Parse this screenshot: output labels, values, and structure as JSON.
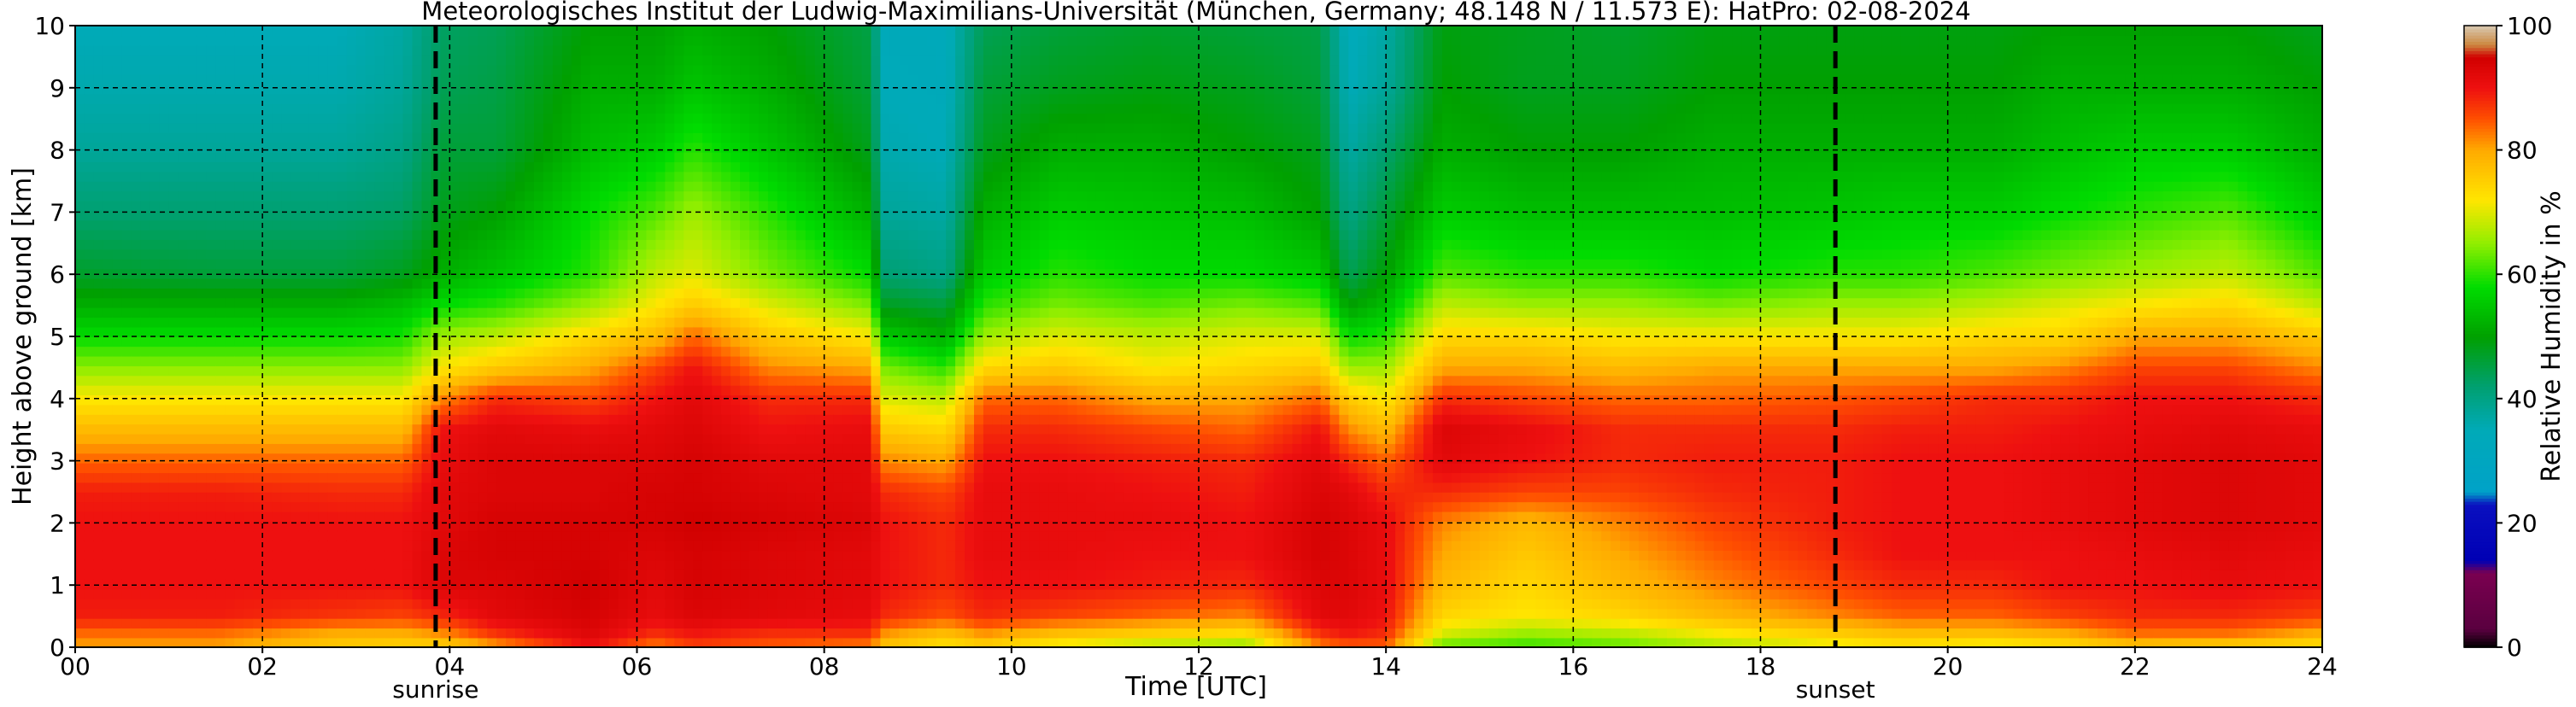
{
  "chart_data": {
    "type": "heatmap",
    "title": "Meteorologisches Institut der Ludwig-Maximilians-Universität (München, Germany; 48.148 N / 11.573 E):    HatPro: 02-08-2024",
    "xlabel": "Time [UTC]",
    "ylabel": "Height above ground [km]",
    "colorbar_label": "Relative Humidity in %",
    "xlim": [
      0,
      24
    ],
    "ylim": [
      0,
      10
    ],
    "clim": [
      0,
      100
    ],
    "x_ticks": [
      0,
      2,
      4,
      6,
      8,
      10,
      12,
      14,
      16,
      18,
      20,
      22,
      24
    ],
    "x_tick_labels": [
      "00",
      "02",
      "04",
      "06",
      "08",
      "10",
      "12",
      "14",
      "16",
      "18",
      "20",
      "22",
      "24"
    ],
    "y_ticks": [
      0,
      1,
      2,
      3,
      4,
      5,
      6,
      7,
      8,
      9,
      10
    ],
    "y_tick_labels": [
      "0",
      "1",
      "2",
      "3",
      "4",
      "5",
      "6",
      "7",
      "8",
      "9",
      "10"
    ],
    "colorbar_ticks": [
      0,
      20,
      40,
      60,
      80,
      100
    ],
    "colorbar_tick_labels": [
      "0",
      "20",
      "40",
      "60",
      "80",
      "100"
    ],
    "grid": true,
    "markers": [
      {
        "label": "sunrise",
        "x": 3.85
      },
      {
        "label": "sunset",
        "x": 18.8
      }
    ],
    "colorscale": [
      {
        "v": 0,
        "color": "#000000"
      },
      {
        "v": 3,
        "color": "#5a0040"
      },
      {
        "v": 12,
        "color": "#7a0050"
      },
      {
        "v": 14,
        "color": "#0000b4"
      },
      {
        "v": 23,
        "color": "#0a10c0"
      },
      {
        "v": 25,
        "color": "#00a2c8"
      },
      {
        "v": 35,
        "color": "#00aab8"
      },
      {
        "v": 42,
        "color": "#00a070"
      },
      {
        "v": 50,
        "color": "#00a000"
      },
      {
        "v": 58,
        "color": "#00dc00"
      },
      {
        "v": 65,
        "color": "#90ee00"
      },
      {
        "v": 72,
        "color": "#ffe600"
      },
      {
        "v": 80,
        "color": "#ffaa00"
      },
      {
        "v": 85,
        "color": "#ff5000"
      },
      {
        "v": 90,
        "color": "#ee1010"
      },
      {
        "v": 95,
        "color": "#d00000"
      },
      {
        "v": 97,
        "color": "#cc8840"
      },
      {
        "v": 100,
        "color": "#d8c8b0"
      }
    ],
    "heights_km": [
      0,
      0.25,
      0.5,
      1,
      1.5,
      2,
      2.5,
      3,
      3.5,
      4,
      4.5,
      5,
      5.5,
      6,
      7,
      8,
      9,
      10
    ],
    "humidity_profiles": [
      {
        "t": 0.0,
        "rh": [
          80,
          84,
          89,
          90,
          90,
          90,
          89,
          84,
          78,
          72,
          65,
          58,
          52,
          47,
          42,
          38,
          36,
          35
        ]
      },
      {
        "t": 1.5,
        "rh": [
          80,
          84,
          89,
          90,
          90,
          90,
          89,
          84,
          78,
          72,
          65,
          58,
          52,
          46,
          42,
          38,
          36,
          35
        ]
      },
      {
        "t": 2.8,
        "rh": [
          75,
          80,
          87,
          90,
          90,
          90,
          88,
          84,
          78,
          72,
          65,
          58,
          52,
          46,
          42,
          38,
          36,
          35
        ]
      },
      {
        "t": 3.5,
        "rh": [
          74,
          80,
          86,
          90,
          90,
          90,
          88,
          84,
          78,
          72,
          65,
          59,
          54,
          48,
          43,
          40,
          38,
          37
        ]
      },
      {
        "t": 3.9,
        "rh": [
          74,
          82,
          88,
          93,
          93,
          92,
          92,
          91,
          90,
          82,
          72,
          66,
          58,
          52,
          48,
          46,
          44,
          43
        ]
      },
      {
        "t": 4.5,
        "rh": [
          80,
          88,
          92,
          93,
          94,
          94,
          93,
          93,
          92,
          88,
          76,
          68,
          60,
          55,
          50,
          46,
          45,
          44
        ]
      },
      {
        "t": 5.5,
        "rh": [
          90,
          93,
          94,
          95,
          94,
          94,
          93,
          93,
          91,
          86,
          80,
          74,
          66,
          60,
          58,
          54,
          52,
          50
        ]
      },
      {
        "t": 6.2,
        "rh": [
          82,
          88,
          91,
          92,
          93,
          94,
          94,
          93,
          92,
          90,
          86,
          78,
          72,
          68,
          62,
          56,
          52,
          50
        ]
      },
      {
        "t": 6.6,
        "rh": [
          86,
          90,
          93,
          94,
          94,
          95,
          94,
          94,
          93,
          92,
          90,
          84,
          76,
          70,
          66,
          60,
          55,
          52
        ]
      },
      {
        "t": 7.4,
        "rh": [
          84,
          88,
          92,
          93,
          93,
          94,
          93,
          92,
          90,
          88,
          82,
          76,
          70,
          64,
          60,
          55,
          52,
          50
        ]
      },
      {
        "t": 8.5,
        "rh": [
          82,
          88,
          91,
          92,
          92,
          93,
          92,
          92,
          91,
          88,
          80,
          72,
          64,
          58,
          52,
          48,
          46,
          45
        ]
      },
      {
        "t": 8.62,
        "rh": [
          76,
          82,
          88,
          90,
          90,
          90,
          88,
          82,
          76,
          70,
          64,
          56,
          48,
          42,
          38,
          36,
          35,
          34
        ]
      },
      {
        "t": 9.3,
        "rh": [
          72,
          78,
          85,
          88,
          88,
          88,
          86,
          80,
          74,
          68,
          60,
          52,
          46,
          40,
          37,
          35,
          34,
          34
        ]
      },
      {
        "t": 9.7,
        "rh": [
          74,
          82,
          88,
          90,
          91,
          91,
          91,
          90,
          88,
          84,
          74,
          66,
          60,
          56,
          52,
          48,
          46,
          44
        ]
      },
      {
        "t": 10.5,
        "rh": [
          70,
          78,
          86,
          90,
          91,
          91,
          91,
          90,
          88,
          84,
          76,
          70,
          64,
          60,
          56,
          52,
          48,
          46
        ]
      },
      {
        "t": 11.5,
        "rh": [
          66,
          76,
          84,
          89,
          90,
          91,
          90,
          89,
          86,
          80,
          72,
          68,
          62,
          58,
          55,
          52,
          49,
          47
        ]
      },
      {
        "t": 12.5,
        "rh": [
          64,
          74,
          82,
          88,
          90,
          90,
          89,
          88,
          84,
          80,
          74,
          70,
          64,
          58,
          54,
          50,
          48,
          46
        ]
      },
      {
        "t": 13.3,
        "rh": [
          82,
          88,
          92,
          93,
          94,
          94,
          93,
          92,
          90,
          84,
          76,
          70,
          62,
          56,
          50,
          48,
          46,
          45
        ]
      },
      {
        "t": 13.6,
        "rh": [
          84,
          90,
          92,
          93,
          93,
          93,
          92,
          88,
          82,
          76,
          66,
          58,
          50,
          44,
          40,
          37,
          35,
          34
        ]
      },
      {
        "t": 14.0,
        "rh": [
          84,
          88,
          90,
          91,
          91,
          91,
          88,
          84,
          78,
          72,
          66,
          60,
          54,
          50,
          46,
          42,
          38,
          37
        ]
      },
      {
        "t": 14.6,
        "rh": [
          62,
          70,
          74,
          78,
          80,
          82,
          88,
          92,
          93,
          88,
          80,
          74,
          68,
          62,
          56,
          52,
          50,
          49
        ]
      },
      {
        "t": 15.5,
        "rh": [
          60,
          66,
          72,
          74,
          76,
          78,
          86,
          90,
          91,
          86,
          80,
          74,
          66,
          60,
          54,
          50,
          48,
          48
        ]
      },
      {
        "t": 16.5,
        "rh": [
          62,
          68,
          74,
          78,
          80,
          82,
          86,
          88,
          88,
          84,
          78,
          72,
          66,
          60,
          54,
          50,
          48,
          47
        ]
      },
      {
        "t": 17.5,
        "rh": [
          66,
          72,
          78,
          82,
          84,
          86,
          88,
          89,
          88,
          84,
          80,
          72,
          64,
          58,
          54,
          52,
          50,
          49
        ]
      },
      {
        "t": 18.8,
        "rh": [
          70,
          76,
          82,
          86,
          88,
          89,
          89,
          89,
          88,
          85,
          80,
          72,
          66,
          60,
          55,
          52,
          50,
          49
        ]
      },
      {
        "t": 19.5,
        "rh": [
          72,
          78,
          84,
          88,
          90,
          90,
          90,
          90,
          89,
          86,
          80,
          72,
          66,
          60,
          56,
          52,
          50,
          49
        ]
      },
      {
        "t": 20.5,
        "rh": [
          70,
          78,
          84,
          88,
          90,
          90,
          90,
          90,
          89,
          88,
          80,
          74,
          68,
          62,
          56,
          52,
          50,
          49
        ]
      },
      {
        "t": 21.2,
        "rh": [
          72,
          80,
          86,
          90,
          90,
          91,
          91,
          91,
          90,
          88,
          82,
          74,
          70,
          64,
          58,
          54,
          52,
          50
        ]
      },
      {
        "t": 22.0,
        "rh": [
          76,
          84,
          88,
          90,
          91,
          92,
          92,
          92,
          91,
          90,
          86,
          80,
          72,
          66,
          60,
          56,
          52,
          50
        ]
      },
      {
        "t": 23.0,
        "rh": [
          74,
          84,
          88,
          91,
          92,
          93,
          93,
          93,
          92,
          90,
          86,
          80,
          74,
          68,
          62,
          56,
          52,
          50
        ]
      },
      {
        "t": 24.0,
        "rh": [
          72,
          80,
          86,
          90,
          91,
          92,
          92,
          92,
          91,
          88,
          82,
          76,
          68,
          62,
          56,
          52,
          50,
          48
        ]
      }
    ]
  }
}
